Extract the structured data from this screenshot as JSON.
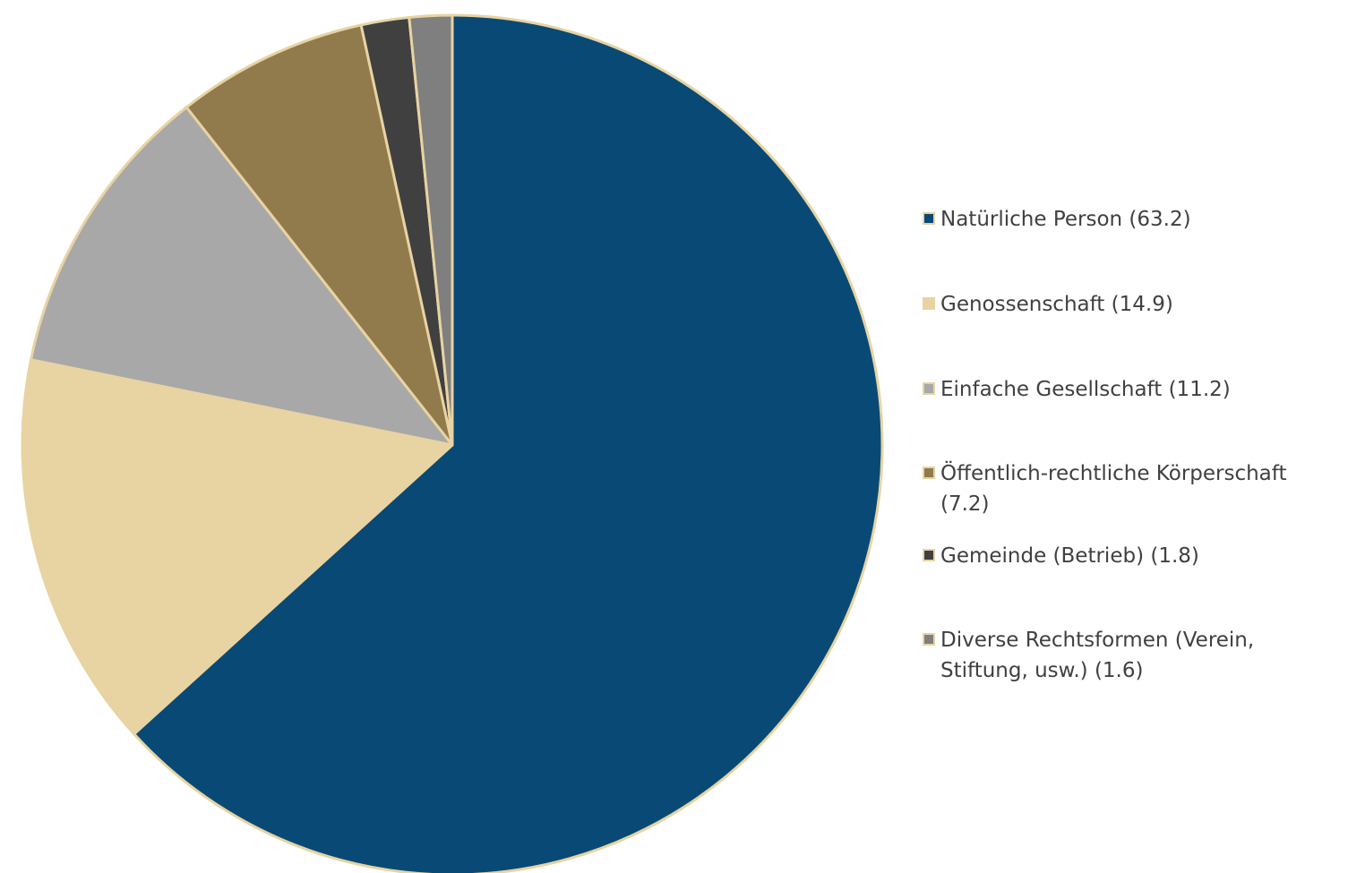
{
  "chart_data": {
    "type": "pie",
    "title": "",
    "start_angle_deg": 0,
    "direction": "clockwise",
    "border_color": "#e8d3a2",
    "legend_position": "right",
    "slices": [
      {
        "label": "Natürliche Person (63.2)",
        "value": 63.2,
        "color": "#084a75"
      },
      {
        "label": "Genossenschaft (14.9)",
        "value": 14.9,
        "color": "#e8d3a2"
      },
      {
        "label": "Einfache Gesellschaft (11.2)",
        "value": 11.2,
        "color": "#a8a8a8"
      },
      {
        "label": "Öffentlich-rechtliche Körperschaft (7.2)",
        "value": 7.2,
        "color": "#917b4c"
      },
      {
        "label": "Gemeinde (Betrieb) (1.8)",
        "value": 1.8,
        "color": "#404040"
      },
      {
        "label": "Diverse Rechtsformen (Verein, Stiftung, usw.) (1.6)",
        "value": 1.6,
        "color": "#7f7f7f"
      }
    ]
  }
}
